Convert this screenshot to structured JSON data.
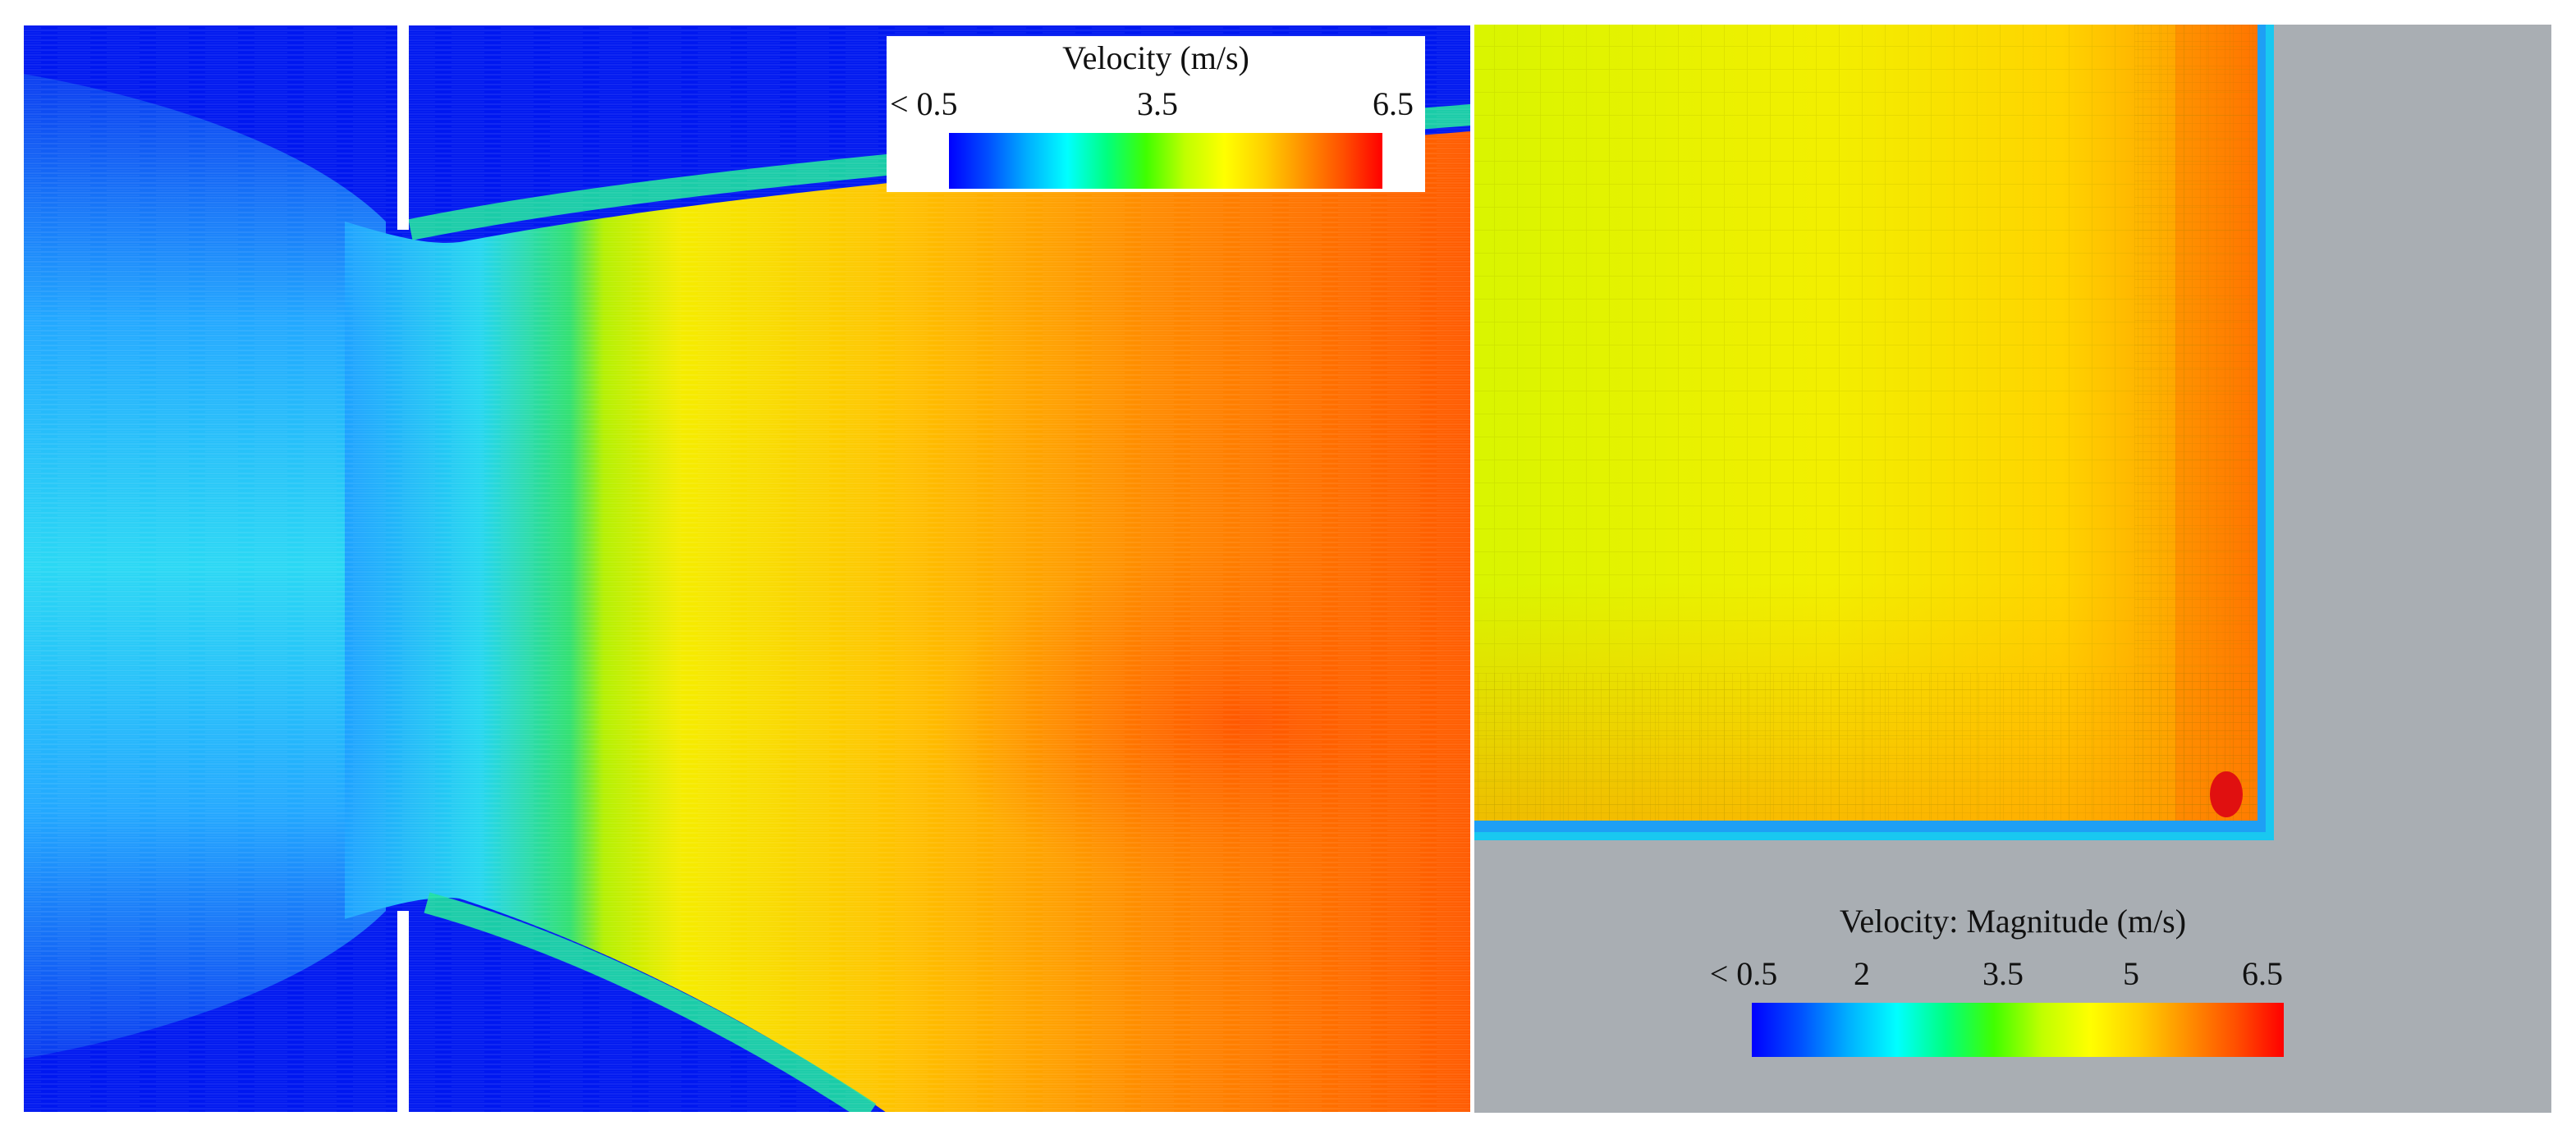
{
  "left_panel": {
    "colorbar": {
      "title": "Velocity (m/s)",
      "tick_labels": [
        "< 0.5",
        "3.5",
        "6.5"
      ],
      "colors": [
        "#0000ff",
        "#0050ff",
        "#00b0ff",
        "#00ffff",
        "#00ff80",
        "#40ff00",
        "#c0ff00",
        "#ffff00",
        "#ffd000",
        "#ff9000",
        "#ff5000",
        "#ff0000"
      ]
    }
  },
  "right_panel": {
    "colorbar": {
      "title": "Velocity: Magnitude (m/s)",
      "tick_labels": [
        "< 0.5",
        "2",
        "3.5",
        "5",
        "6.5"
      ],
      "colors": [
        "#0000ff",
        "#0050ff",
        "#00b0ff",
        "#00ffff",
        "#00ff80",
        "#40ff00",
        "#c0ff00",
        "#ffff00",
        "#ffd000",
        "#ff9000",
        "#ff5000",
        "#ff0000"
      ]
    }
  },
  "colors": {
    "background_gray": "#a9aeb3",
    "low": "#0018f0",
    "high": "#ff2a00"
  }
}
